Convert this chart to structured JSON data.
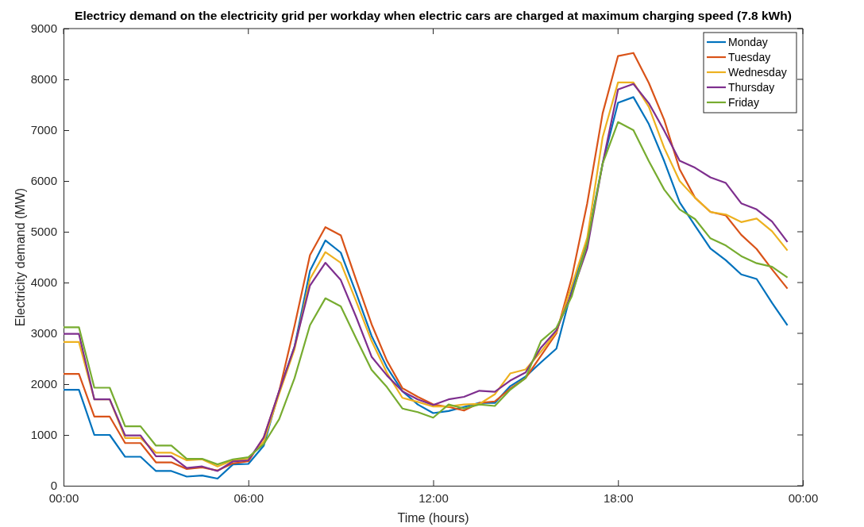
{
  "chart_data": {
    "type": "line",
    "title": "Electricy demand on the electricity grid per workday when electric cars are charged at maximum charging speed (7.8 kWh)",
    "xlabel": "Time (hours)",
    "ylabel": "Electricity demand (MW)",
    "x": [
      0,
      0.5,
      1,
      1.5,
      2,
      2.5,
      3,
      3.5,
      4,
      4.5,
      5,
      5.5,
      6,
      6.5,
      7,
      7.5,
      8,
      8.5,
      9,
      9.5,
      10,
      10.5,
      11,
      11.5,
      12,
      12.5,
      13,
      13.5,
      14,
      14.5,
      15,
      15.5,
      16,
      16.5,
      17,
      17.5,
      18,
      18.5,
      19,
      19.5,
      20,
      20.5,
      21,
      21.5,
      22,
      22.5,
      23,
      23.5
    ],
    "xlim": [
      0,
      24
    ],
    "xticks": [
      {
        "value": 0,
        "label": "00:00"
      },
      {
        "value": 6,
        "label": "06:00"
      },
      {
        "value": 12,
        "label": "12:00"
      },
      {
        "value": 18,
        "label": "18:00"
      },
      {
        "value": 24,
        "label": "00:00"
      }
    ],
    "ylim": [
      0,
      9000
    ],
    "yticks": [
      0,
      1000,
      2000,
      3000,
      4000,
      5000,
      6000,
      7000,
      8000,
      9000
    ],
    "grid": false,
    "legend": "top right",
    "series": [
      {
        "name": "Monday",
        "color": "#0072bd",
        "values": [
          1890,
          1890,
          1000,
          1000,
          570,
          570,
          290,
          290,
          180,
          200,
          140,
          420,
          430,
          790,
          1860,
          2740,
          4230,
          4830,
          4590,
          3790,
          2950,
          2330,
          1860,
          1600,
          1430,
          1470,
          1550,
          1630,
          1630,
          1960,
          2150,
          2430,
          2700,
          3860,
          4830,
          6340,
          7540,
          7650,
          7120,
          6390,
          5580,
          5120,
          4670,
          4440,
          4160,
          4070,
          3600,
          3160
        ]
      },
      {
        "name": "Tuesday",
        "color": "#d95319",
        "values": [
          2200,
          2200,
          1360,
          1360,
          840,
          840,
          460,
          460,
          330,
          360,
          300,
          440,
          480,
          950,
          1860,
          3150,
          4540,
          5090,
          4930,
          4050,
          3180,
          2460,
          1920,
          1750,
          1600,
          1550,
          1480,
          1630,
          1660,
          1910,
          2120,
          2560,
          3000,
          4100,
          5560,
          7330,
          8460,
          8520,
          7930,
          7200,
          6230,
          5670,
          5390,
          5320,
          4940,
          4660,
          4260,
          3880
        ]
      },
      {
        "name": "Wednesday",
        "color": "#edb120",
        "values": [
          2830,
          2830,
          1700,
          1700,
          940,
          940,
          650,
          650,
          500,
          520,
          380,
          500,
          530,
          870,
          1810,
          2690,
          4070,
          4600,
          4390,
          3630,
          2850,
          2220,
          1730,
          1650,
          1560,
          1560,
          1600,
          1610,
          1800,
          2210,
          2290,
          2640,
          3030,
          3940,
          4880,
          6860,
          7940,
          7940,
          7460,
          6650,
          6000,
          5670,
          5390,
          5340,
          5190,
          5260,
          5010,
          4630
        ]
      },
      {
        "name": "Thursday",
        "color": "#7e2f8e",
        "values": [
          2990,
          2990,
          1700,
          1700,
          990,
          990,
          580,
          580,
          350,
          380,
          290,
          480,
          500,
          950,
          1860,
          2740,
          3940,
          4390,
          4050,
          3320,
          2540,
          2170,
          1860,
          1700,
          1590,
          1700,
          1750,
          1870,
          1850,
          2070,
          2230,
          2720,
          3060,
          3790,
          4670,
          6340,
          7800,
          7910,
          7530,
          6990,
          6400,
          6260,
          6070,
          5960,
          5560,
          5440,
          5200,
          4800
        ]
      },
      {
        "name": "Friday",
        "color": "#77ac30",
        "values": [
          3120,
          3120,
          1930,
          1930,
          1170,
          1170,
          790,
          790,
          530,
          530,
          420,
          520,
          560,
          820,
          1310,
          2120,
          3160,
          3690,
          3530,
          2900,
          2280,
          1940,
          1520,
          1450,
          1340,
          1600,
          1520,
          1600,
          1570,
          1890,
          2120,
          2850,
          3110,
          3730,
          4780,
          6340,
          7160,
          7000,
          6390,
          5830,
          5440,
          5250,
          4870,
          4730,
          4520,
          4380,
          4310,
          4100
        ]
      }
    ]
  }
}
